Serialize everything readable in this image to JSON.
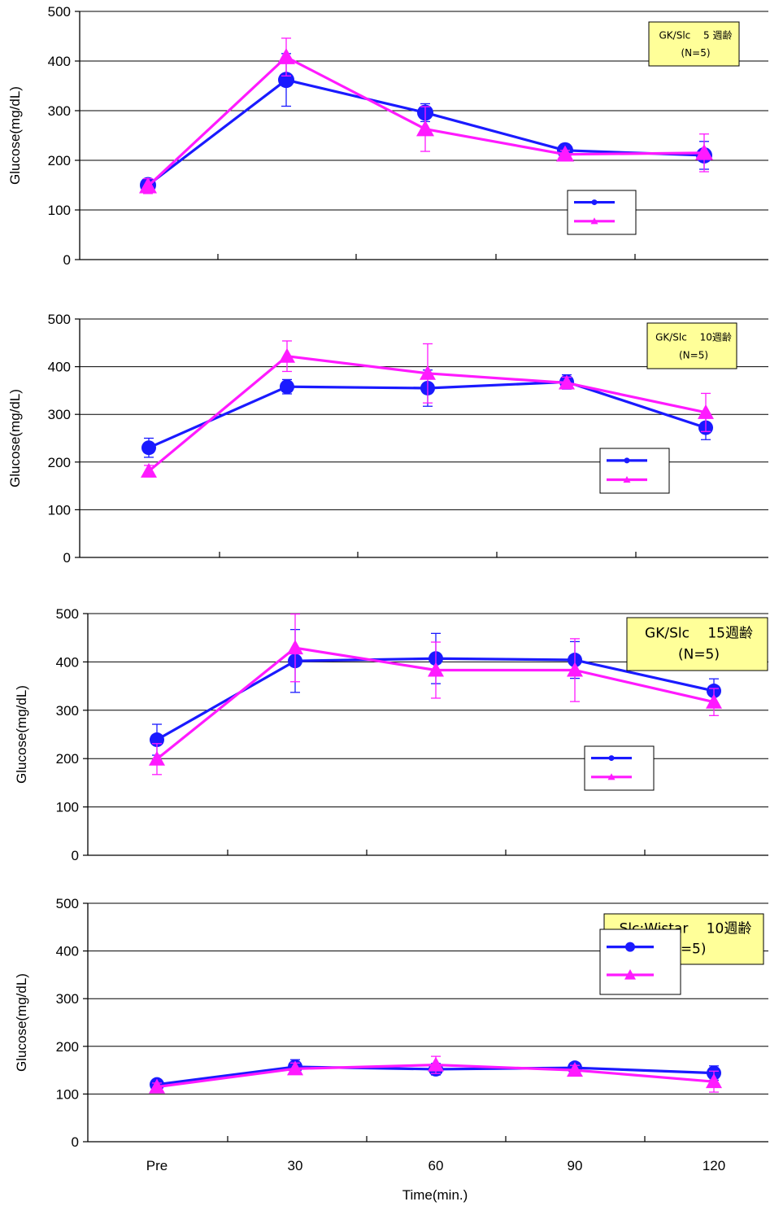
{
  "chart_data": [
    {
      "type": "line",
      "annotation": [
        "GK/Slc　 5 週齢",
        "(N=5)"
      ],
      "ylabel": "Glucose(mg/dL)",
      "ylim": [
        0,
        500
      ],
      "yticks": [
        "0",
        "100",
        "200",
        "300",
        "400",
        "500"
      ],
      "categories": [
        "Pre",
        "30",
        "60",
        "90",
        "120"
      ],
      "grid": "horizontal",
      "legend_position": "lower-right",
      "series": [
        {
          "marker": "circle",
          "color": "#1a1aff",
          "values": [
            150,
            362,
            296,
            220,
            210
          ],
          "errors": [
            12,
            53,
            18,
            8,
            28
          ]
        },
        {
          "marker": "triangle",
          "color": "#ff1aff",
          "values": [
            148,
            408,
            263,
            212,
            215
          ],
          "errors": [
            15,
            38,
            45,
            8,
            38
          ]
        }
      ]
    },
    {
      "type": "line",
      "annotation": [
        "GK/Slc　 10週齢",
        "(N=5)"
      ],
      "ylabel": "Glucose(mg/dL)",
      "ylim": [
        0,
        500
      ],
      "yticks": [
        "0",
        "100",
        "200",
        "300",
        "400",
        "500"
      ],
      "categories": [
        "Pre",
        "30",
        "60",
        "90",
        "120"
      ],
      "grid": "horizontal",
      "legend_position": "lower-right",
      "series": [
        {
          "marker": "circle",
          "color": "#1a1aff",
          "values": [
            230,
            358,
            355,
            368,
            272
          ],
          "errors": [
            20,
            15,
            38,
            15,
            25
          ]
        },
        {
          "marker": "triangle",
          "color": "#ff1aff",
          "values": [
            181,
            422,
            386,
            366,
            304
          ],
          "errors": [
            12,
            32,
            62,
            12,
            40
          ]
        }
      ]
    },
    {
      "type": "line",
      "annotation": [
        "GK/Slc　 15週齢",
        "(N=5)"
      ],
      "ylabel": "Glucose(mg/dL)",
      "ylim": [
        0,
        500
      ],
      "yticks": [
        "0",
        "100",
        "200",
        "300",
        "400",
        "500"
      ],
      "categories": [
        "Pre",
        "30",
        "60",
        "90",
        "120"
      ],
      "grid": "horizontal",
      "legend_position": "lower-right",
      "series": [
        {
          "marker": "circle",
          "color": "#1a1aff",
          "values": [
            239,
            402,
            407,
            404,
            340
          ],
          "errors": [
            32,
            65,
            52,
            38,
            25
          ]
        },
        {
          "marker": "triangle",
          "color": "#ff1aff",
          "values": [
            199,
            429,
            383,
            383,
            317
          ],
          "errors": [
            32,
            70,
            58,
            65,
            28
          ]
        }
      ]
    },
    {
      "type": "line",
      "annotation": [
        "Slc:Wistar　 10週齢",
        "(N=5)"
      ],
      "ylabel": "Glucose(mg/dL)",
      "xlabel": "Time(min.)",
      "ylim": [
        0,
        500
      ],
      "yticks": [
        "0",
        "100",
        "200",
        "300",
        "400",
        "500"
      ],
      "categories": [
        "Pre",
        "30",
        "60",
        "90",
        "120"
      ],
      "grid": "horizontal",
      "legend_position": "right",
      "series": [
        {
          "marker": "circle",
          "color": "#1a1aff",
          "values": [
            120,
            157,
            152,
            155,
            144
          ],
          "errors": [
            8,
            15,
            12,
            8,
            15
          ]
        },
        {
          "marker": "triangle",
          "color": "#ff1aff",
          "values": [
            115,
            153,
            161,
            150,
            126
          ],
          "errors": [
            8,
            12,
            18,
            10,
            22
          ]
        }
      ]
    }
  ]
}
